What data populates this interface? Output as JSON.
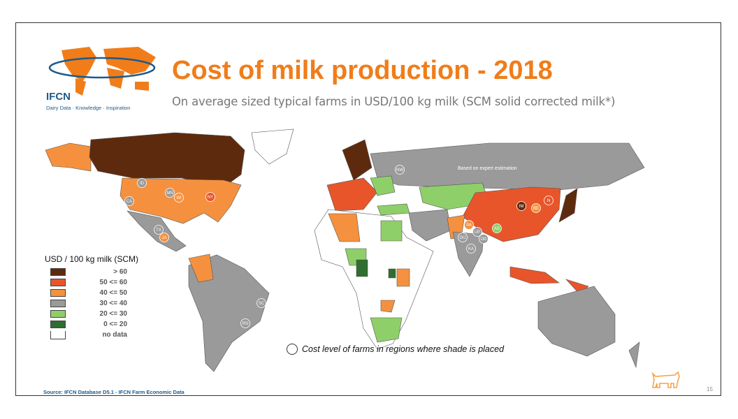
{
  "header": {
    "logo_name": "IFCN",
    "logo_tagline": "Dairy Data · Knowledge · Inspiration",
    "title": "Cost of milk production - 2018",
    "subtitle": "On average sized typical farms in USD/100 kg milk (SCM solid corrected milk*)"
  },
  "map": {
    "russia_note": "Based on expert estimation",
    "region_labels": [
      "ID",
      "CA",
      "MN",
      "WI",
      "NY",
      "TX",
      "JA",
      "SC",
      "RS",
      "NW",
      "IM",
      "BE",
      "N",
      "PA",
      "AS",
      "UP",
      "GU",
      "OD",
      "KA"
    ],
    "note": "Cost level of farms in regions where shade is placed"
  },
  "legend": {
    "title": "USD / 100 kg milk (SCM)",
    "items": [
      {
        "label": "> 60",
        "color": "#5e2a0e"
      },
      {
        "label": "50 <= 60",
        "color": "#e8552a"
      },
      {
        "label": "40 <= 50",
        "color": "#f5913e"
      },
      {
        "label": "30 <= 40",
        "color": "#9a9a9a"
      },
      {
        "label": "20 <= 30",
        "color": "#8fcf6a"
      },
      {
        "label": "0 <= 20",
        "color": "#2f6e2f"
      },
      {
        "label": "no data",
        "color": "#ffffff"
      }
    ]
  },
  "footer": {
    "source": "Source: IFCN Database D5.1 - IFCN Farm Economic Data",
    "page_number": "15"
  },
  "colors": {
    "accent": "#f07d1a",
    "brand_blue": "#1e5a8c"
  }
}
